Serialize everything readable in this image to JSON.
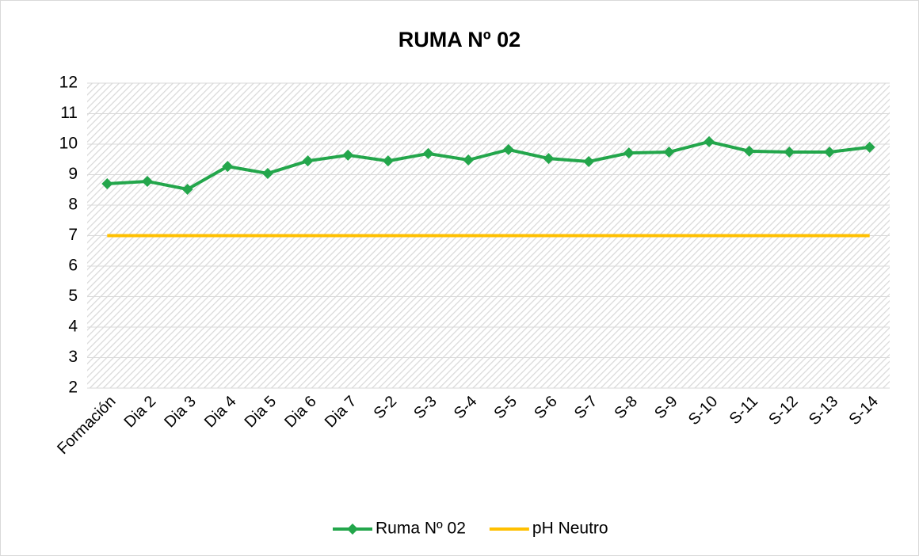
{
  "chart_data": {
    "type": "line",
    "title": "RUMA Nº 02",
    "categories": [
      "Formación",
      "Dia 2",
      "Dia 3",
      "Dia 4",
      "Dia 5",
      "Dia 6",
      "Dia 7",
      "S-2",
      "S-3",
      "S-4",
      "S-5",
      "S-6",
      "S-7",
      "S-8",
      "S-9",
      "S-10",
      "S-11",
      "S-12",
      "S-13",
      "S-14"
    ],
    "series": [
      {
        "name": "Ruma Nº 02",
        "color": "#23a64b",
        "marker": "diamond",
        "values": [
          8.7,
          8.78,
          8.52,
          9.27,
          9.04,
          9.45,
          9.64,
          9.45,
          9.69,
          9.48,
          9.82,
          9.53,
          9.43,
          9.71,
          9.74,
          10.08,
          9.77,
          9.74,
          9.74,
          9.9
        ]
      },
      {
        "name": "pH Neutro",
        "color": "#ffc000",
        "values": [
          7,
          7,
          7,
          7,
          7,
          7,
          7,
          7,
          7,
          7,
          7,
          7,
          7,
          7,
          7,
          7,
          7,
          7,
          7,
          7
        ]
      }
    ],
    "ylim": [
      2,
      12
    ],
    "yticks": [
      2,
      3,
      4,
      5,
      6,
      7,
      8,
      9,
      10,
      11,
      12
    ],
    "grid": true,
    "legend": "bottom"
  }
}
